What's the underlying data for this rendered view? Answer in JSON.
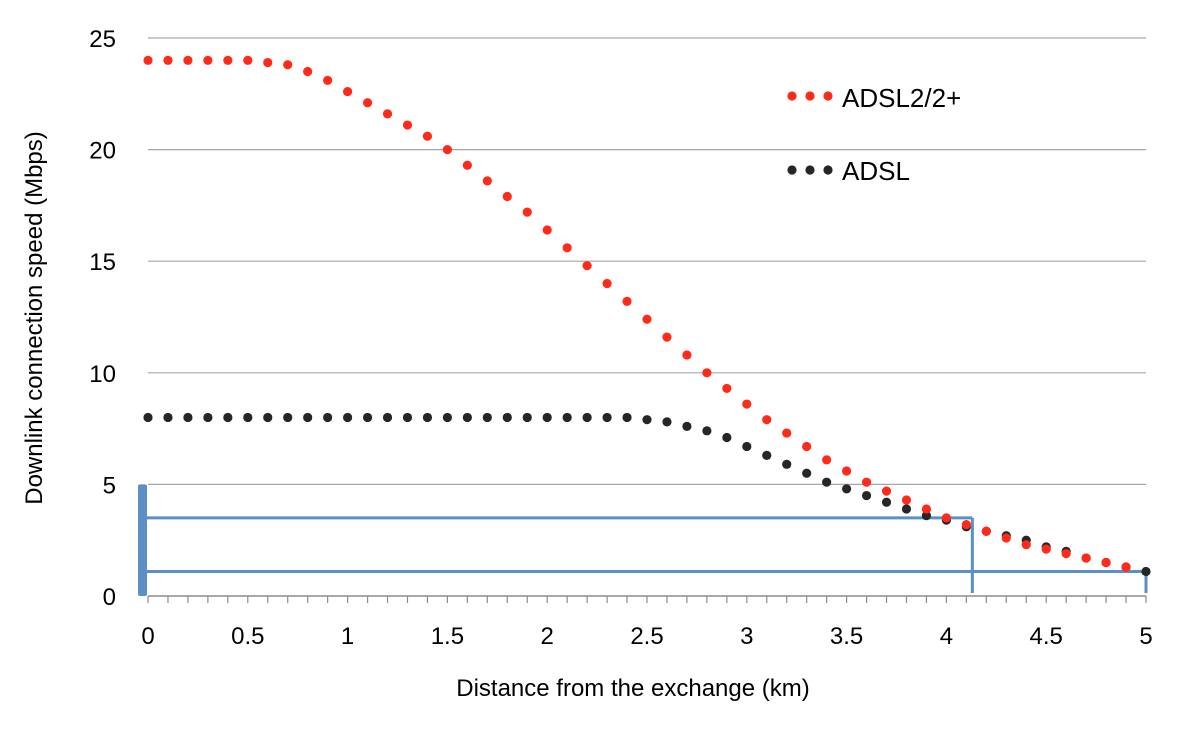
{
  "chart_data": {
    "type": "scatter",
    "title": "",
    "xlabel": "Distance from the exchange (km)",
    "ylabel": "Downlink connection speed (Mbps)",
    "xlim": [
      0,
      5
    ],
    "ylim": [
      0,
      25
    ],
    "x_ticks": [
      "0",
      "0.5",
      "1",
      "1.5",
      "2",
      "2.5",
      "3",
      "3.5",
      "4",
      "4.5",
      "5"
    ],
    "y_ticks": [
      "0",
      "5",
      "10",
      "15",
      "20",
      "25"
    ],
    "grid": "horizontal",
    "legend_position": "top-right",
    "series": [
      {
        "name": "ADSL2/2+",
        "color": "#ff2a1a",
        "x": [
          0,
          0.1,
          0.2,
          0.3,
          0.4,
          0.5,
          0.6,
          0.7,
          0.8,
          0.9,
          1.0,
          1.1,
          1.2,
          1.3,
          1.4,
          1.5,
          1.6,
          1.7,
          1.8,
          1.9,
          2.0,
          2.1,
          2.2,
          2.3,
          2.4,
          2.5,
          2.6,
          2.7,
          2.8,
          2.9,
          3.0,
          3.1,
          3.2,
          3.3,
          3.4,
          3.5,
          3.6,
          3.7,
          3.8,
          3.9,
          4.0,
          4.1,
          4.2,
          4.3,
          4.4,
          4.5,
          4.6,
          4.7,
          4.8,
          4.9
        ],
        "y": [
          24.0,
          24.0,
          24.0,
          24.0,
          24.0,
          24.0,
          23.9,
          23.8,
          23.5,
          23.1,
          22.6,
          22.1,
          21.6,
          21.1,
          20.6,
          20.0,
          19.3,
          18.6,
          17.9,
          17.2,
          16.4,
          15.6,
          14.8,
          14.0,
          13.2,
          12.4,
          11.6,
          10.8,
          10.0,
          9.3,
          8.6,
          7.9,
          7.3,
          6.7,
          6.1,
          5.6,
          5.1,
          4.7,
          4.3,
          3.9,
          3.5,
          3.2,
          2.9,
          2.6,
          2.3,
          2.1,
          1.9,
          1.7,
          1.5,
          1.3
        ]
      },
      {
        "name": "ADSL",
        "color": "#262626",
        "x": [
          0,
          0.1,
          0.2,
          0.3,
          0.4,
          0.5,
          0.6,
          0.7,
          0.8,
          0.9,
          1.0,
          1.1,
          1.2,
          1.3,
          1.4,
          1.5,
          1.6,
          1.7,
          1.8,
          1.9,
          2.0,
          2.1,
          2.2,
          2.3,
          2.4,
          2.5,
          2.6,
          2.7,
          2.8,
          2.9,
          3.0,
          3.1,
          3.2,
          3.3,
          3.4,
          3.5,
          3.6,
          3.7,
          3.8,
          3.9,
          4.0,
          4.1,
          4.2,
          4.3,
          4.4,
          4.5,
          4.6,
          4.7,
          4.8,
          4.9,
          5.0
        ],
        "y": [
          8.0,
          8.0,
          8.0,
          8.0,
          8.0,
          8.0,
          8.0,
          8.0,
          8.0,
          8.0,
          8.0,
          8.0,
          8.0,
          8.0,
          8.0,
          8.0,
          8.0,
          8.0,
          8.0,
          8.0,
          8.0,
          8.0,
          8.0,
          8.0,
          8.0,
          7.9,
          7.8,
          7.6,
          7.4,
          7.1,
          6.7,
          6.3,
          5.9,
          5.5,
          5.1,
          4.8,
          4.5,
          4.2,
          3.9,
          3.6,
          3.4,
          3.1,
          2.9,
          2.7,
          2.5,
          2.2,
          2.0,
          1.7,
          1.5,
          1.3,
          1.1
        ]
      }
    ],
    "annotations": {
      "color": "#5b8fc7",
      "distance_marker_km": 4.13,
      "speed_levels_mbps": [
        3.5,
        1.1
      ],
      "y_axis_highlight": [
        0,
        5
      ]
    }
  }
}
